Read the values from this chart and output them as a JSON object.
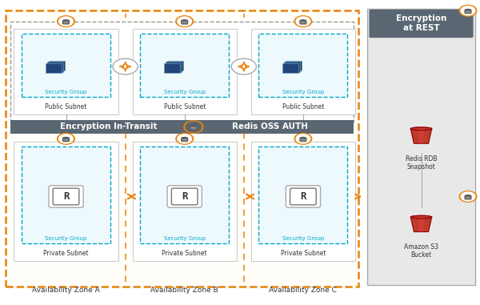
{
  "fig_width": 6.0,
  "fig_height": 3.81,
  "dpi": 100,
  "bg_color": "#ffffff",
  "orange_dash_color": "#E8820C",
  "blue_dash_color": "#00A8C6",
  "gray_box_color": "#5a6772",
  "availability_zones": [
    "Availability Zone A",
    "Availability Zone B",
    "Availability Zone C"
  ],
  "encryption_banner_text": "Encryption In-Transit",
  "redis_auth_text": "Redis OSS AUTH",
  "encryption_rest_text": "Encryption\nat REST",
  "redis_rdb_text": "Redis RDB\nSnapshot",
  "amazon_s3_text": "Amazon S3\nBucket",
  "public_subnet_text": "Public Subnet",
  "private_subnet_text": "Private Subnet",
  "security_group_text": "Security Group"
}
